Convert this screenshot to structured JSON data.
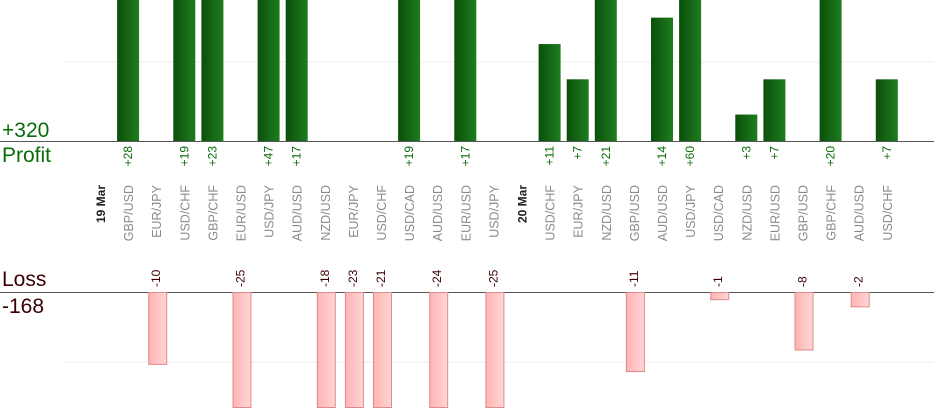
{
  "summary": {
    "profit_total": "+320",
    "profit_label": "Profit",
    "loss_label": "Loss",
    "loss_total": "-168"
  },
  "colors": {
    "profit_dark": "#0b4f0b",
    "profit_light": "#1e7d1e",
    "profit_text": "#0a6b0a",
    "loss_fill": "#ffc0c0",
    "loss_stroke": "#e08a8a",
    "loss_text": "#3a0000",
    "category_text": "#8a8a8a",
    "axis": "#555555",
    "grid": "#eeeeee"
  },
  "chart_data": {
    "type": "bar",
    "subtype": "diverging",
    "title": "",
    "categories": [
      "19 Mar",
      "GBP/USD",
      "EUR/JPY",
      "USD/CHF",
      "GBP/CHF",
      "EUR/USD",
      "USD/JPY",
      "AUD/USD",
      "NZD/USD",
      "EUR/JPY",
      "USD/CHF",
      "USD/CAD",
      "AUD/USD",
      "EUR/USD",
      "USD/JPY",
      "20 Mar",
      "USD/CHF",
      "EUR/JPY",
      "NZD/USD",
      "GBP/USD",
      "AUD/USD",
      "USD/JPY",
      "USD/CAD",
      "NZD/USD",
      "EUR/USD",
      "GBP/USD",
      "GBP/CHF",
      "AUD/USD",
      "USD/CHF"
    ],
    "date_categories": [
      "19 Mar",
      "20 Mar"
    ],
    "series": [
      {
        "name": "Profit",
        "values": [
          null,
          28,
          null,
          19,
          23,
          null,
          47,
          17,
          null,
          null,
          null,
          19,
          null,
          17,
          null,
          null,
          11,
          7,
          21,
          null,
          14,
          60,
          null,
          3,
          7,
          null,
          20,
          null,
          7
        ]
      },
      {
        "name": "Loss",
        "values": [
          null,
          null,
          -10,
          null,
          null,
          -25,
          null,
          null,
          -18,
          -23,
          -21,
          null,
          -24,
          null,
          -25,
          null,
          null,
          null,
          null,
          -11,
          null,
          null,
          -1,
          null,
          null,
          -8,
          null,
          -2,
          null
        ]
      }
    ],
    "profit_labels": [
      null,
      "+28",
      null,
      "+19",
      "+23",
      null,
      "+47",
      "+17",
      null,
      null,
      null,
      "+19",
      null,
      "+17",
      null,
      null,
      "+11",
      "+7",
      "+21",
      null,
      "+14",
      "+60",
      null,
      "+3",
      "+7",
      null,
      "+20",
      null,
      "+7"
    ],
    "loss_labels": [
      null,
      null,
      "-10",
      null,
      null,
      "-25",
      null,
      null,
      "-18",
      "-23",
      "-21",
      null,
      "-24",
      null,
      "-25",
      null,
      null,
      null,
      null,
      "-11",
      null,
      null,
      "-1",
      null,
      null,
      "-8",
      null,
      "-2",
      null
    ],
    "profit_ylim": [
      0,
      16
    ],
    "loss_ylim": [
      -16,
      0
    ],
    "grid": true,
    "legend": "none"
  }
}
